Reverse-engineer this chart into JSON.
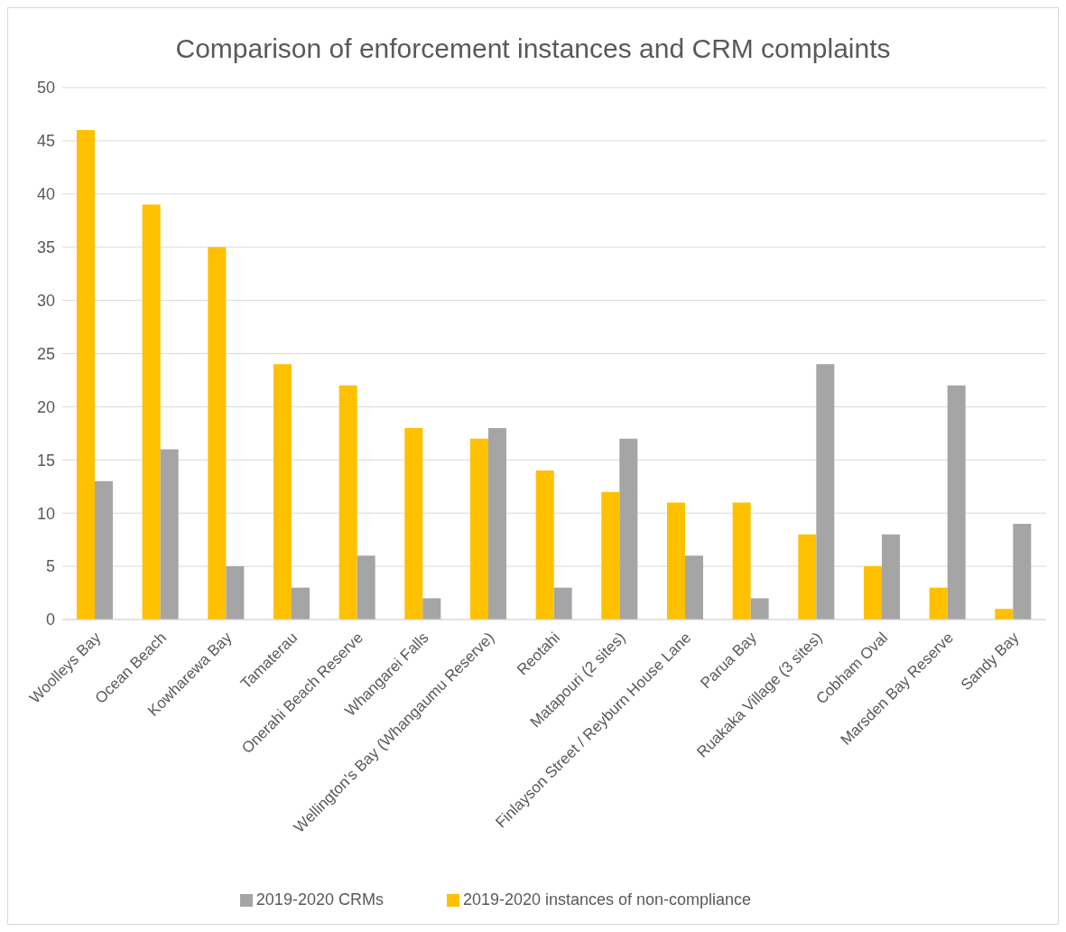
{
  "chart_data": {
    "type": "bar",
    "title": "Comparison of enforcement instances and CRM complaints",
    "categories": [
      "Woolleys Bay",
      "Ocean Beach",
      "Kowharewa Bay",
      "Tamaterau",
      "Onerahi Beach Reserve",
      "Whangarei Falls",
      "Wellington's Bay (Whangaumu Reserve)",
      "Reotahi",
      "Matapouri (2 sites)",
      "Finlayson Street / Reyburn House Lane",
      "Parua Bay",
      "Ruakaka Village (3 sites)",
      "Cobham Oval",
      "Marsden Bay Reserve",
      "Sandy Bay"
    ],
    "series": [
      {
        "name": "2019-2020 instances of non-compliance",
        "color": "#ffc000",
        "values": [
          46,
          39,
          35,
          24,
          22,
          18,
          17,
          14,
          12,
          11,
          11,
          8,
          5,
          3,
          1
        ]
      },
      {
        "name": "2019-2020 CRMs",
        "color": "#a5a5a5",
        "values": [
          13,
          16,
          5,
          3,
          6,
          2,
          18,
          3,
          17,
          6,
          2,
          24,
          8,
          22,
          9
        ]
      }
    ],
    "ylim": [
      0,
      50
    ],
    "yticks": [
      0,
      5,
      10,
      15,
      20,
      25,
      30,
      35,
      40,
      45,
      50
    ],
    "grid": "y",
    "legend": "bottom"
  }
}
